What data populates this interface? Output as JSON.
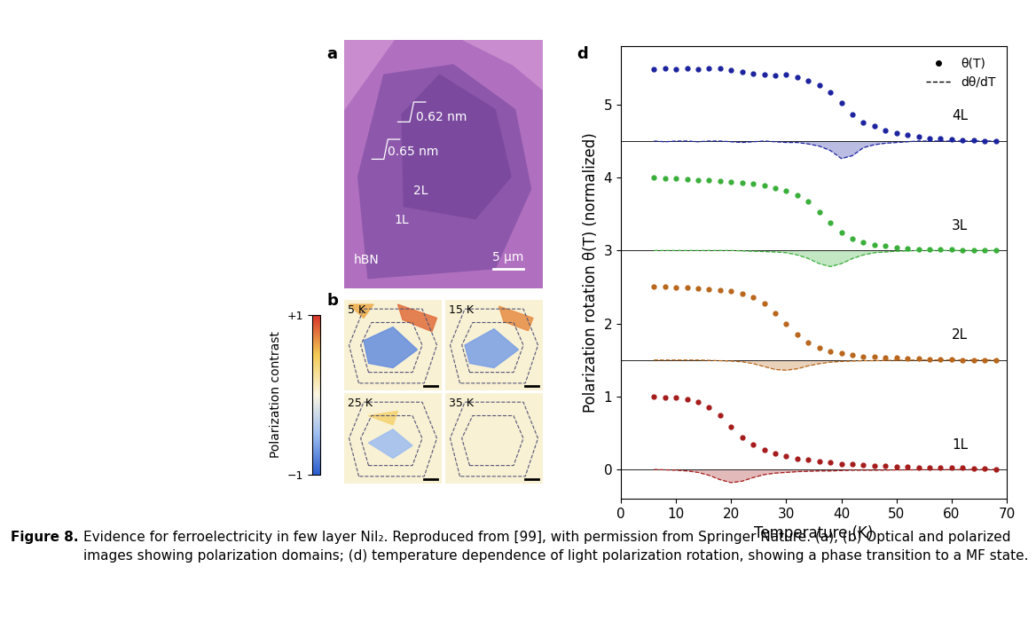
{
  "panel_a": {
    "letter": "a",
    "texts": {
      "step_upper": "0.62 nm",
      "step_lower": "0.65 nm",
      "region_2L": "2L",
      "region_1L": "1L",
      "substrate": "hBN",
      "scale_bar": "5 μm"
    }
  },
  "panel_b": {
    "letter": "b",
    "temperatures": [
      "5 K",
      "15 K",
      "25 K",
      "35 K"
    ],
    "colorbar": {
      "label": "Polarization contrast",
      "range": [
        -1,
        1
      ],
      "ticks": [
        {
          "value": 1,
          "label": "+1"
        },
        {
          "value": -1,
          "label": "−1"
        }
      ]
    }
  },
  "chart_data": {
    "type": "scatter",
    "letter": "d",
    "x_label": "Temperature (K)",
    "y_label": "Polarization rotation θ(T) (normalized)",
    "xlim": [
      0,
      70
    ],
    "xticks": [
      0,
      10,
      20,
      30,
      40,
      50,
      60,
      70
    ],
    "ylim": [
      -0.4,
      5.8
    ],
    "yticks": [
      0,
      1,
      2,
      3,
      4,
      5
    ],
    "grid": false,
    "legend": "upper right",
    "legend_labels": [
      "θ(T)",
      "dθ/dT"
    ],
    "marker": "dot",
    "x": [
      6,
      8,
      10,
      12,
      14,
      16,
      18,
      20,
      22,
      24,
      26,
      28,
      30,
      32,
      34,
      36,
      38,
      40,
      42,
      44,
      46,
      48,
      50,
      52,
      54,
      56,
      58,
      60,
      62,
      64,
      66,
      68
    ],
    "series": [
      {
        "name": "1L",
        "color": "#a51c1c",
        "baseline": 0,
        "values": [
          1.0,
          0.99,
          0.98,
          0.96,
          0.92,
          0.85,
          0.74,
          0.58,
          0.44,
          0.34,
          0.27,
          0.22,
          0.18,
          0.15,
          0.13,
          0.11,
          0.1,
          0.08,
          0.07,
          0.06,
          0.05,
          0.05,
          0.04,
          0.04,
          0.03,
          0.03,
          0.02,
          0.02,
          0.02,
          0.01,
          0.01,
          0.0
        ],
        "derivative": [
          0.0,
          -0.005,
          -0.01,
          -0.02,
          -0.04,
          -0.08,
          -0.14,
          -0.18,
          -0.16,
          -0.11,
          -0.07,
          -0.05,
          -0.04,
          -0.03,
          -0.025,
          -0.02,
          -0.02,
          -0.015,
          -0.01,
          -0.01,
          -0.01,
          -0.008,
          -0.006,
          -0.005,
          -0.004,
          -0.003,
          -0.002,
          -0.002,
          -0.001,
          -0.001,
          0.0,
          0.0
        ]
      },
      {
        "name": "2L",
        "color": "#b8671c",
        "baseline": 1.5,
        "values": [
          2.5,
          2.5,
          2.49,
          2.49,
          2.48,
          2.47,
          2.46,
          2.44,
          2.41,
          2.36,
          2.27,
          2.14,
          1.99,
          1.85,
          1.74,
          1.67,
          1.62,
          1.59,
          1.57,
          1.55,
          1.54,
          1.53,
          1.53,
          1.52,
          1.52,
          1.51,
          1.51,
          1.51,
          1.5,
          1.5,
          1.5,
          1.5
        ],
        "derivative": [
          1.5,
          1.5,
          1.5,
          1.5,
          1.5,
          1.495,
          1.49,
          1.485,
          1.475,
          1.45,
          1.41,
          1.37,
          1.36,
          1.38,
          1.42,
          1.45,
          1.47,
          1.48,
          1.485,
          1.49,
          1.49,
          1.495,
          1.497,
          1.498,
          1.5,
          1.5,
          1.5,
          1.5,
          1.5,
          1.5,
          1.5,
          1.5
        ]
      },
      {
        "name": "3L",
        "color": "#3aaf3a",
        "baseline": 3,
        "values": [
          4.0,
          3.99,
          3.99,
          3.98,
          3.97,
          3.96,
          3.95,
          3.94,
          3.93,
          3.91,
          3.89,
          3.86,
          3.82,
          3.76,
          3.67,
          3.53,
          3.38,
          3.25,
          3.16,
          3.11,
          3.08,
          3.06,
          3.04,
          3.03,
          3.02,
          3.01,
          3.01,
          3.01,
          3.0,
          3.0,
          3.0,
          3.0
        ],
        "derivative": [
          3.0,
          3.0,
          3.0,
          3.0,
          3.0,
          3.0,
          3.0,
          3.0,
          2.995,
          2.99,
          2.985,
          2.98,
          2.97,
          2.94,
          2.89,
          2.82,
          2.78,
          2.82,
          2.89,
          2.94,
          2.97,
          2.98,
          2.99,
          2.995,
          3.0,
          3.0,
          3.0,
          3.0,
          3.0,
          3.0,
          3.0,
          3.0
        ]
      },
      {
        "name": "4L",
        "color": "#1c239e",
        "baseline": 4.5,
        "values": [
          5.48,
          5.49,
          5.48,
          5.49,
          5.48,
          5.5,
          5.5,
          5.47,
          5.45,
          5.42,
          5.41,
          5.4,
          5.41,
          5.37,
          5.33,
          5.27,
          5.17,
          5.02,
          4.86,
          4.76,
          4.7,
          4.65,
          4.61,
          4.58,
          4.56,
          4.54,
          4.53,
          4.52,
          4.51,
          4.51,
          4.5,
          4.5
        ],
        "derivative": [
          4.5,
          4.49,
          4.5,
          4.5,
          4.49,
          4.5,
          4.5,
          4.49,
          4.48,
          4.49,
          4.5,
          4.49,
          4.48,
          4.48,
          4.46,
          4.43,
          4.37,
          4.26,
          4.3,
          4.41,
          4.45,
          4.47,
          4.48,
          4.49,
          4.5,
          4.5,
          4.5,
          4.5,
          4.5,
          4.5,
          4.5,
          4.5
        ]
      }
    ]
  },
  "caption": {
    "label": "Figure 8.",
    "text": "Evidence for ferroelectricity in few layer NiI₂. Reproduced from [99], with permission from Springer Nature. (a), (b) Optical and polarized images showing polarization domains; (d) temperature dependence of light polarization rotation, showing a phase transition to a MF state."
  }
}
